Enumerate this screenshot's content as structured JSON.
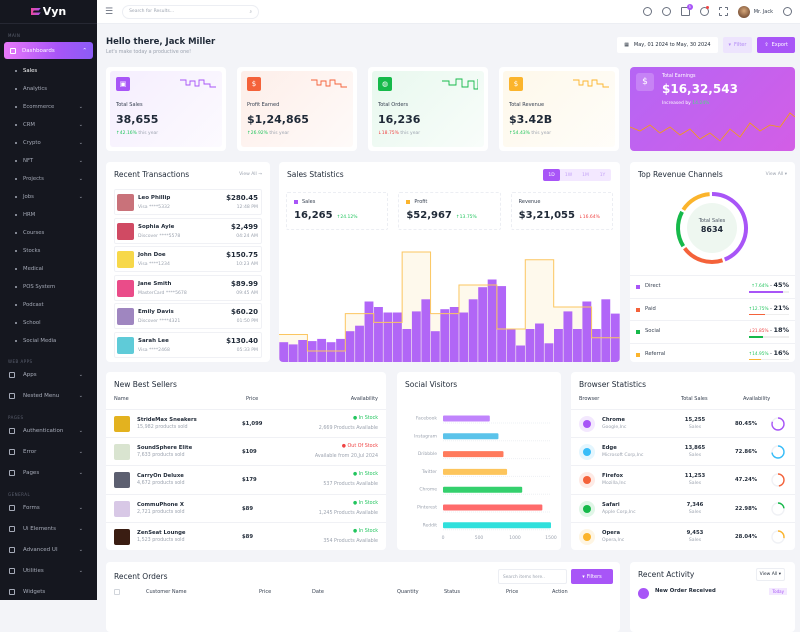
{
  "app": {
    "name": "Vyn"
  },
  "sidebar": {
    "main_label": "MAIN",
    "active": "Dashboards",
    "subs": [
      {
        "label": "Sales",
        "current": true
      },
      {
        "label": "Analytics"
      },
      {
        "label": "Ecommerce",
        "chev": true
      },
      {
        "label": "CRM",
        "chev": true
      },
      {
        "label": "Crypto",
        "chev": true
      },
      {
        "label": "NFT",
        "chev": true
      },
      {
        "label": "Projects",
        "chev": true
      },
      {
        "label": "Jobs",
        "chev": true
      },
      {
        "label": "HRM"
      },
      {
        "label": "Courses"
      },
      {
        "label": "Stocks"
      },
      {
        "label": "Medical"
      },
      {
        "label": "POS System"
      },
      {
        "label": "Podcast"
      },
      {
        "label": "School"
      },
      {
        "label": "Social Media"
      }
    ],
    "sections": [
      {
        "label": "WEB APPS",
        "items": [
          {
            "label": "Apps",
            "icon": "grid-icon"
          },
          {
            "label": "Nested Menu",
            "icon": "layers-icon"
          }
        ]
      },
      {
        "label": "PAGES",
        "items": [
          {
            "label": "Authentication",
            "icon": "lock-icon"
          },
          {
            "label": "Error",
            "icon": "alert-icon"
          },
          {
            "label": "Pages",
            "icon": "file-icon"
          }
        ]
      },
      {
        "label": "GENERAL",
        "items": [
          {
            "label": "Forms",
            "icon": "form-icon"
          },
          {
            "label": "Ui Elements",
            "icon": "box-icon"
          },
          {
            "label": "Advanced UI",
            "icon": "brush-icon"
          },
          {
            "label": "Utilities",
            "icon": "tool-icon"
          },
          {
            "label": "Widgets",
            "icon": "gift-icon"
          }
        ]
      }
    ]
  },
  "header": {
    "search_placeholder": "Search for Results...",
    "cart_count": "5",
    "user": "Mr. Jack"
  },
  "page": {
    "greeting": "Hello there, Jack Miller",
    "subtitle": "Let's make today a productive one!",
    "date_range": "May, 01 2024 to May, 30 2024",
    "filter": "Filter",
    "export": "Export"
  },
  "stats": [
    {
      "label": "Total Sales",
      "value": "38,655",
      "change": "42.16%",
      "dir": "up",
      "suffix": "this year",
      "color": "#a855f7",
      "bg": "#f5eefe"
    },
    {
      "label": "Profit Earned",
      "value": "$1,24,865",
      "change": "26.92%",
      "dir": "up",
      "suffix": "this year",
      "color": "#f4623a",
      "bg": "#fdeee9"
    },
    {
      "label": "Total Orders",
      "value": "16,236",
      "change": "18.75%",
      "dir": "down",
      "suffix": "this year",
      "color": "#16b94a",
      "bg": "#e8f8ee"
    },
    {
      "label": "Total Revenue",
      "value": "$3.42B",
      "change": "54.43%",
      "dir": "up",
      "suffix": "this year",
      "color": "#fbb42c",
      "bg": "#fef8ea"
    }
  ],
  "earnings": {
    "label": "Total Earnings",
    "value": "$16,32,543",
    "increased_by": "Increased by",
    "change": "14.24%"
  },
  "transactions": {
    "title": "Recent Transactions",
    "view_all": "View All",
    "items": [
      {
        "name": "Leo Phillip",
        "card": "Visa ****5332",
        "amount": "$280.45",
        "time": "12:48 PM",
        "bg": "#c9727a"
      },
      {
        "name": "Sophia Ayle",
        "card": "Discover ****5578",
        "amount": "$2,499",
        "time": "04:24 AM",
        "bg": "#d04a63"
      },
      {
        "name": "John Doe",
        "card": "Visa ****1234",
        "amount": "$150.75",
        "time": "10:23 AM",
        "bg": "#f7d84a"
      },
      {
        "name": "Jane Smith",
        "card": "MasterCard ****5678",
        "amount": "$89.99",
        "time": "09:45 AM",
        "bg": "#ea4c89"
      },
      {
        "name": "Emily Davis",
        "card": "Discover ****4321",
        "amount": "$60.20",
        "time": "01:50 PM",
        "bg": "#9f86c0"
      },
      {
        "name": "Sarah Lee",
        "card": "Visa ****2468",
        "amount": "$130.40",
        "time": "05:33 PM",
        "bg": "#5fcbd8"
      }
    ]
  },
  "sales_stats": {
    "title": "Sales Statistics",
    "periods": [
      "1D",
      "1W",
      "1M",
      "1Y"
    ],
    "active_period": "1D",
    "kpis": [
      {
        "label": "Sales",
        "value": "16,265",
        "change": "24.12%",
        "dir": "up",
        "color": "#a855f7"
      },
      {
        "label": "Profit",
        "value": "$52,967",
        "change": "13.75%",
        "dir": "up",
        "color": "#fbb42c"
      },
      {
        "label": "Revenue",
        "value": "$3,21,055",
        "change": "16.64%",
        "dir": "down",
        "color": ""
      }
    ]
  },
  "revenue_channels": {
    "title": "Top Revenue Channels",
    "view_all": "View All",
    "center_label": "Total Sales",
    "center_value": "8634",
    "items": [
      {
        "label": "Direct",
        "change": "7.64%",
        "dir": "up",
        "pct": "45%",
        "value": 45,
        "color": "#a855f7"
      },
      {
        "label": "Paid",
        "change": "12.75%",
        "dir": "up",
        "pct": "21%",
        "value": 21,
        "color": "#f4623a"
      },
      {
        "label": "Social",
        "change": "21.85%",
        "dir": "down",
        "pct": "18%",
        "value": 18,
        "color": "#16b94a"
      },
      {
        "label": "Referral",
        "change": "14.95%",
        "dir": "up",
        "pct": "16%",
        "value": 16,
        "color": "#fbb42c"
      }
    ]
  },
  "best_sellers": {
    "title": "New Best Sellers",
    "columns": [
      "Name",
      "Price",
      "Availability"
    ],
    "items": [
      {
        "name": "StrideMax Sneakers",
        "sold": "15,982 products sold",
        "price": "$1,099",
        "status": "In Stock",
        "ok": true,
        "avail": "2,669 Products Available",
        "bg": "#e3b21f"
      },
      {
        "name": "SoundSphere Elite",
        "sold": "7,633 products sold",
        "price": "$109",
        "status": "Out Of Stock",
        "ok": false,
        "avail": "Available from 20,Jul 2024",
        "bg": "#d9e4d0"
      },
      {
        "name": "CarryOn Deluxe",
        "sold": "4,672 products sold",
        "price": "$179",
        "status": "In Stock",
        "ok": true,
        "avail": "537 Products Available",
        "bg": "#5c5f70"
      },
      {
        "name": "CommuPhone X",
        "sold": "2,721 products sold",
        "price": "$89",
        "status": "In Stock",
        "ok": true,
        "avail": "1,245 Products Available",
        "bg": "#d8c8e6"
      },
      {
        "name": "ZenSeat Lounge",
        "sold": "1,523 products sold",
        "price": "$89",
        "status": "In Stock",
        "ok": true,
        "avail": "354 Products Available",
        "bg": "#3a1d12"
      }
    ]
  },
  "chart_data": [
    {
      "type": "bar",
      "title": "Social Visitors",
      "orientation": "horizontal",
      "categories": [
        "Facebook",
        "Instagram",
        "Dribbble",
        "Twitter",
        "Chrome",
        "Pinterest",
        "Reddit"
      ],
      "values": [
        650,
        770,
        840,
        890,
        1100,
        1380,
        1500
      ],
      "colors": [
        "#c084fc",
        "#5bc3ea",
        "#ff7a5c",
        "#fdc55c",
        "#34d06d",
        "#ff6b6b",
        "#2fe0dc"
      ],
      "xlim": [
        0,
        1500
      ],
      "xticks": [
        "0",
        "500",
        "1000",
        "1500"
      ],
      "grid": true
    },
    {
      "type": "bar",
      "title": "Sales Statistics",
      "series": [
        {
          "name": "Sales",
          "values": [
            18,
            16,
            20,
            19,
            21,
            18,
            21,
            28,
            33,
            55,
            50,
            45,
            45,
            30,
            46,
            57,
            28,
            48,
            50,
            45,
            57,
            68,
            75,
            69,
            30,
            15,
            30,
            35,
            17,
            30,
            46,
            30,
            55,
            30,
            57,
            44
          ]
        },
        {
          "name": "Profit",
          "values": [
            25,
            25,
            25,
            10,
            10,
            10,
            10,
            44,
            44,
            44,
            36,
            36,
            36,
            100,
            100,
            100,
            44,
            44,
            44,
            70,
            70,
            70,
            70,
            30,
            30,
            30,
            93,
            93,
            93,
            50,
            50,
            50,
            50,
            22,
            22,
            22
          ]
        }
      ]
    },
    {
      "type": "pie",
      "title": "Top Revenue Channels",
      "categories": [
        "Direct",
        "Paid",
        "Social",
        "Referral"
      ],
      "values": [
        45,
        21,
        18,
        16
      ]
    }
  ],
  "social": {
    "title": "Social Visitors"
  },
  "browser": {
    "title": "Browser Statistics",
    "columns": [
      "Browser",
      "Total Sales",
      "Availability"
    ],
    "sales_label": "Sales",
    "items": [
      {
        "name": "Chrome",
        "company": "Google,Inc",
        "sales": "15,255",
        "pct": "80.45%",
        "value": 80.45,
        "color": "#a855f7"
      },
      {
        "name": "Edge",
        "company": "Microsoft Corp,Inc",
        "sales": "13,865",
        "pct": "72.86%",
        "value": 72.86,
        "color": "#38bdf8"
      },
      {
        "name": "Firefox",
        "company": "Mozilla,Inc",
        "sales": "11,253",
        "pct": "47.24%",
        "value": 47.24,
        "color": "#f4623a"
      },
      {
        "name": "Safari",
        "company": "Apple Corp,Inc",
        "sales": "7,346",
        "pct": "22.98%",
        "value": 22.98,
        "color": "#16b94a"
      },
      {
        "name": "Opera",
        "company": "Opera,Inc",
        "sales": "9,453",
        "pct": "28.04%",
        "value": 28.04,
        "color": "#fbb42c"
      }
    ]
  },
  "orders": {
    "title": "Recent Orders",
    "search_placeholder": "Search items here..",
    "filters": "Filters",
    "columns": [
      "Customer Name",
      "Price",
      "Date",
      "Quantity",
      "Status",
      "Price",
      "Action"
    ]
  },
  "activity": {
    "title": "Recent Activity",
    "view_all": "View All",
    "first": "New Order Received",
    "badge": "Today"
  }
}
